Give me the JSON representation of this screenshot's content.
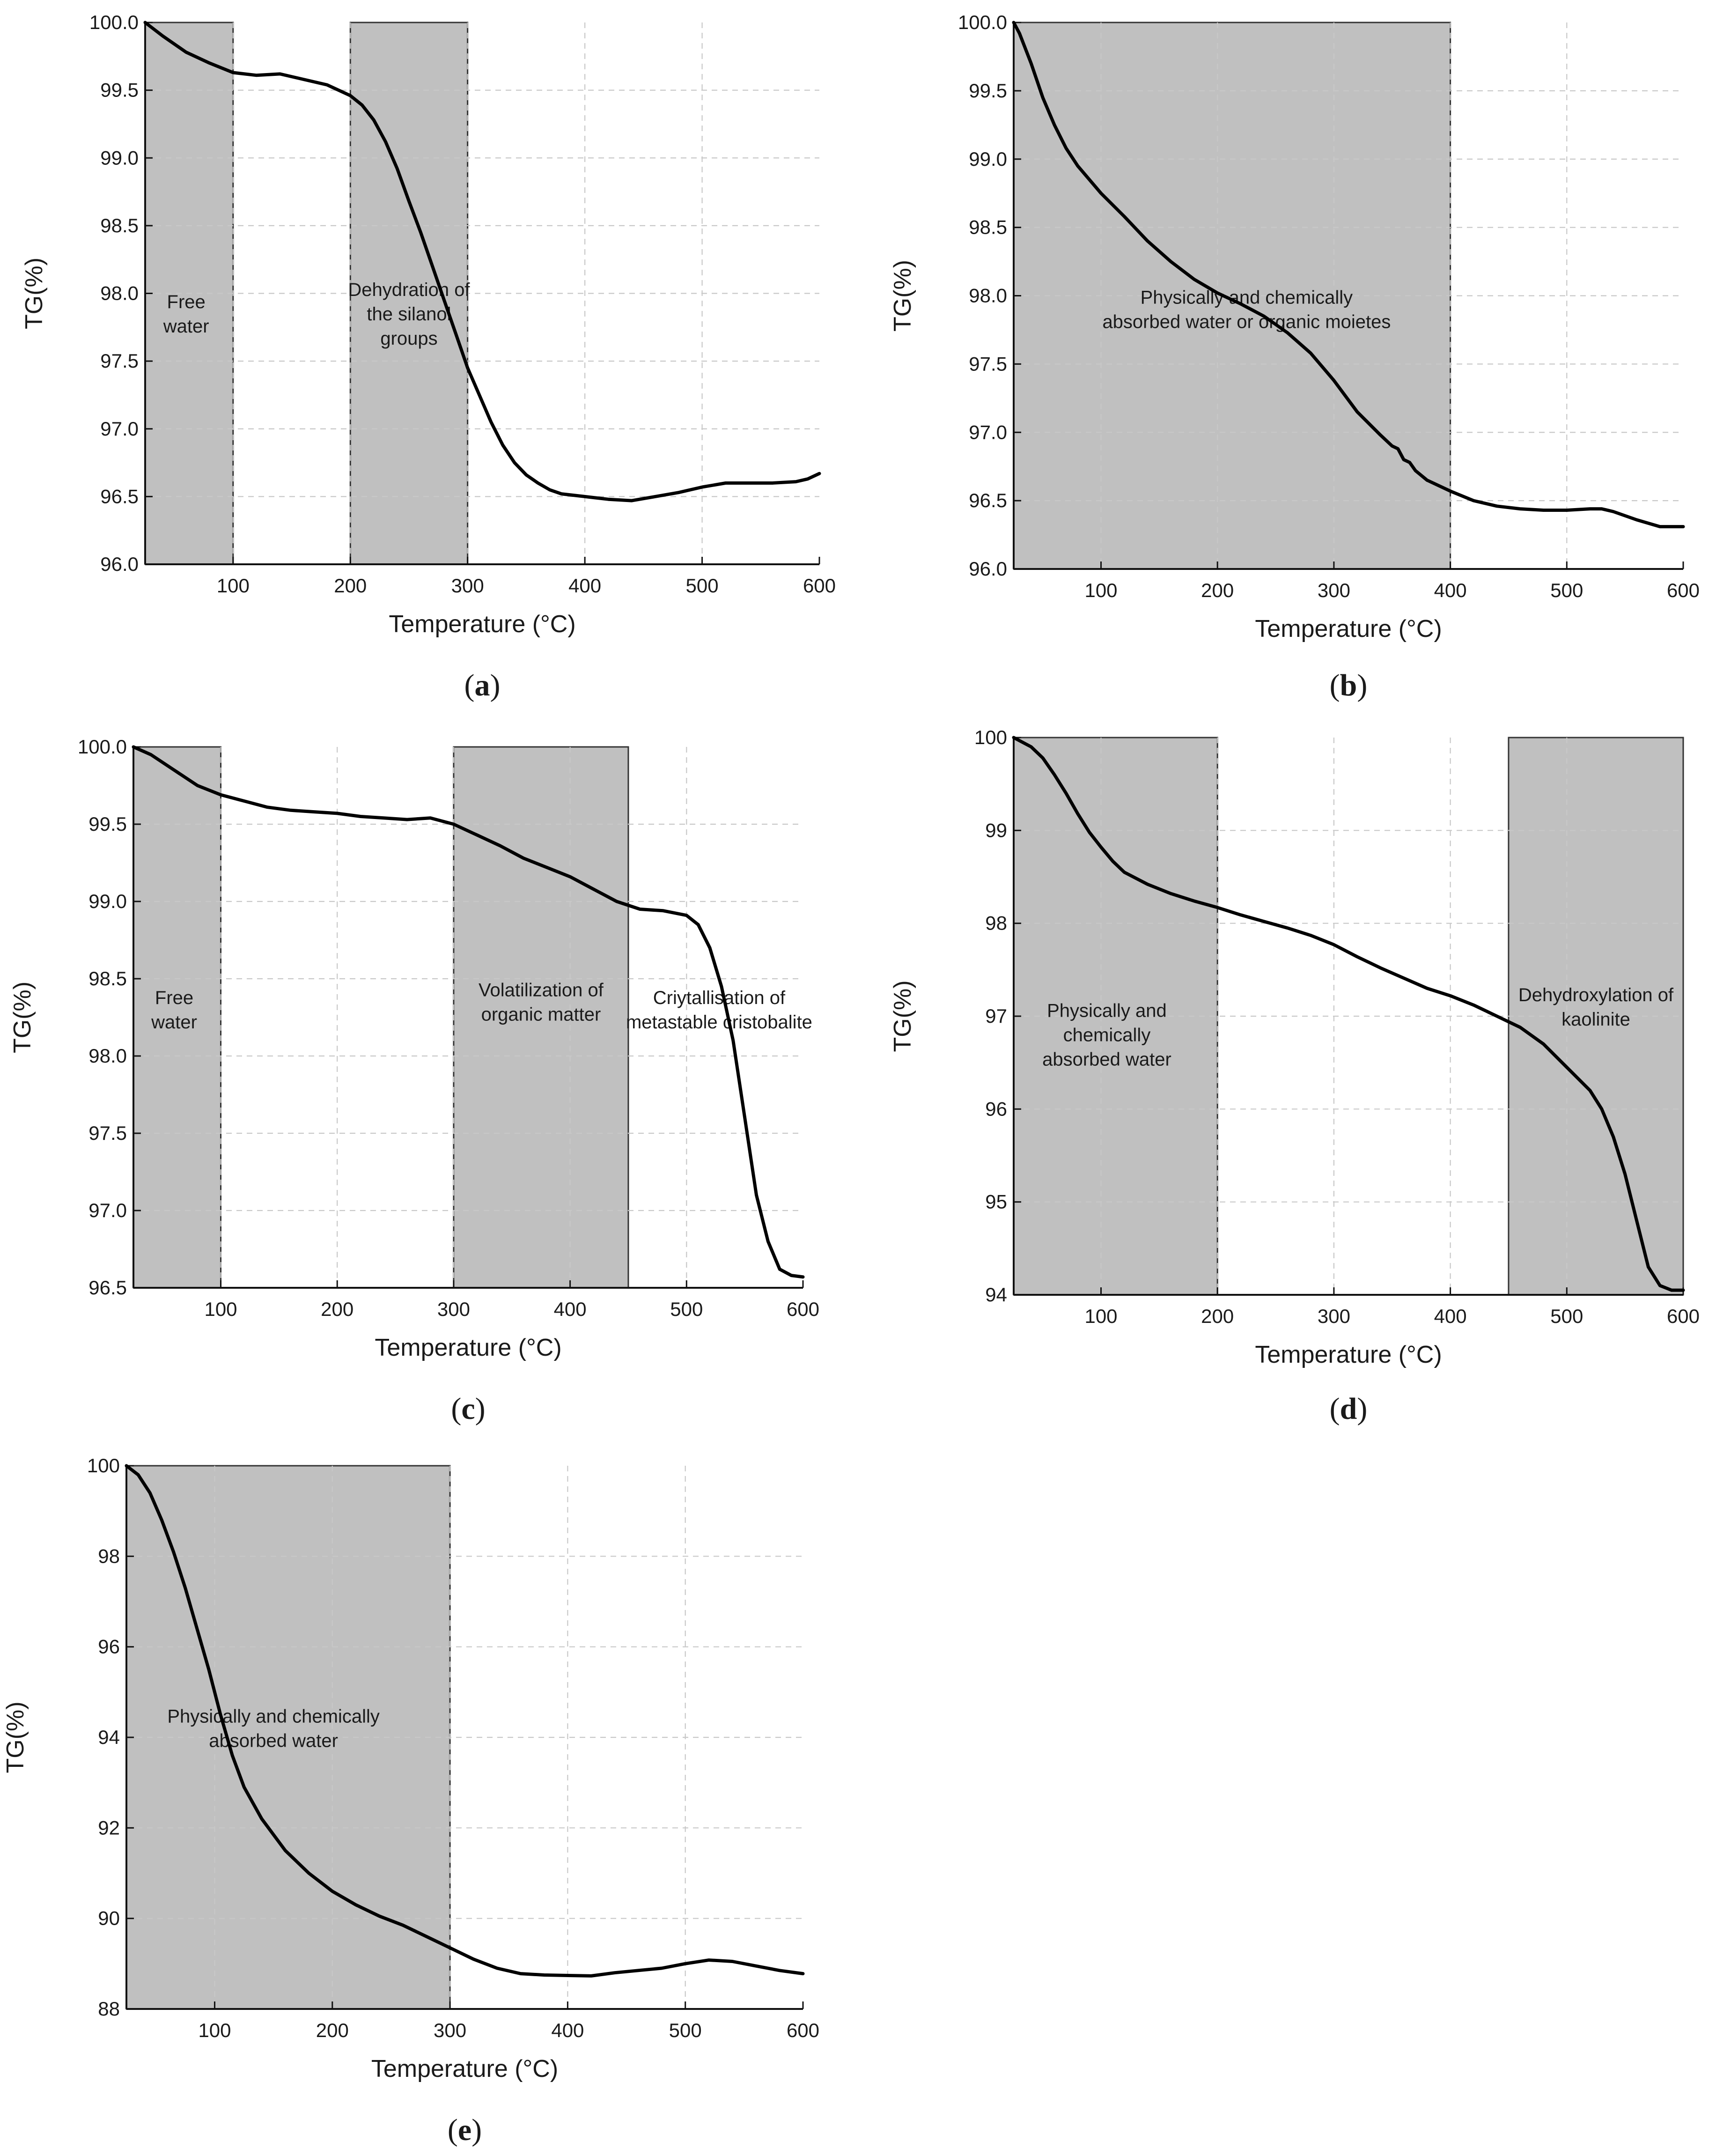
{
  "figure": {
    "layout": "five TGA panels in a 2x3 grid"
  },
  "chart_data": [
    {
      "id": "a",
      "panel_label": "a",
      "type": "line",
      "xlabel": "Temperature (°C)",
      "ylabel": "TG(%)",
      "xlim": [
        25,
        600
      ],
      "ylim": [
        96.0,
        100.0
      ],
      "x_ticks": [
        "100",
        "200",
        "300",
        "400",
        "500",
        "600"
      ],
      "x_tick_values": [
        100,
        200,
        300,
        400,
        500,
        600
      ],
      "y_ticks": [
        "96.0",
        "96.5",
        "97.0",
        "97.5",
        "98.0",
        "98.5",
        "99.0",
        "99.5",
        "100.0"
      ],
      "y_tick_values": [
        96.0,
        96.5,
        97.0,
        97.5,
        98.0,
        98.5,
        99.0,
        99.5,
        100.0
      ],
      "grid": true,
      "regions": [
        {
          "x_start": 25,
          "x_end": 100,
          "label": [
            "Free",
            "water"
          ],
          "label_pos": [
            60,
            97.85
          ]
        },
        {
          "x_start": 200,
          "x_end": 300,
          "label": [
            "Dehydration of",
            "the silanol",
            "groups"
          ],
          "label_pos": [
            250,
            97.85
          ]
        }
      ],
      "series": [
        {
          "name": "TG",
          "x": [
            25,
            40,
            60,
            80,
            100,
            120,
            140,
            160,
            180,
            200,
            210,
            220,
            230,
            240,
            250,
            260,
            270,
            280,
            290,
            300,
            310,
            320,
            330,
            340,
            350,
            360,
            370,
            380,
            390,
            400,
            420,
            440,
            460,
            480,
            500,
            520,
            540,
            560,
            580,
            590,
            600
          ],
          "y": [
            100.0,
            99.9,
            99.78,
            99.7,
            99.63,
            99.61,
            99.62,
            99.58,
            99.54,
            99.46,
            99.39,
            99.28,
            99.12,
            98.92,
            98.68,
            98.45,
            98.2,
            97.95,
            97.7,
            97.45,
            97.25,
            97.05,
            96.88,
            96.75,
            96.66,
            96.6,
            96.55,
            96.52,
            96.51,
            96.5,
            96.48,
            96.47,
            96.5,
            96.53,
            96.57,
            96.6,
            96.6,
            96.6,
            96.61,
            96.63,
            96.67
          ]
        }
      ]
    },
    {
      "id": "b",
      "panel_label": "b",
      "type": "line",
      "xlabel": "Temperature (°C)",
      "ylabel": "TG(%)",
      "xlim": [
        25,
        600
      ],
      "ylim": [
        96.0,
        100.0
      ],
      "x_ticks": [
        "100",
        "200",
        "300",
        "400",
        "500",
        "600"
      ],
      "x_tick_values": [
        100,
        200,
        300,
        400,
        500,
        600
      ],
      "y_ticks": [
        "96.0",
        "96.5",
        "97.0",
        "97.5",
        "98.0",
        "98.5",
        "99.0",
        "99.5",
        "100.0"
      ],
      "y_tick_values": [
        96.0,
        96.5,
        97.0,
        97.5,
        98.0,
        98.5,
        99.0,
        99.5,
        100.0
      ],
      "grid": true,
      "regions": [
        {
          "x_start": 25,
          "x_end": 400,
          "label": [
            "Physically and chemically",
            "absorbed water or organic moietes"
          ],
          "label_pos": [
            225,
            97.9
          ]
        }
      ],
      "series": [
        {
          "name": "TG",
          "x": [
            25,
            30,
            40,
            50,
            60,
            70,
            80,
            100,
            120,
            140,
            160,
            180,
            200,
            220,
            240,
            260,
            280,
            300,
            320,
            340,
            350,
            355,
            360,
            365,
            370,
            380,
            400,
            420,
            440,
            460,
            480,
            500,
            520,
            530,
            540,
            560,
            580,
            600
          ],
          "y": [
            100.0,
            99.92,
            99.7,
            99.45,
            99.25,
            99.08,
            98.95,
            98.75,
            98.58,
            98.4,
            98.25,
            98.12,
            98.02,
            97.94,
            97.85,
            97.73,
            97.58,
            97.38,
            97.15,
            96.98,
            96.9,
            96.88,
            96.8,
            96.78,
            96.72,
            96.65,
            96.57,
            96.5,
            96.46,
            96.44,
            96.43,
            96.43,
            96.44,
            96.44,
            96.42,
            96.36,
            96.31,
            96.31
          ]
        }
      ]
    },
    {
      "id": "c",
      "panel_label": "c",
      "type": "line",
      "xlabel": "Temperature (°C)",
      "ylabel": "TG(%)",
      "xlim": [
        25,
        600
      ],
      "ylim": [
        96.5,
        100.0
      ],
      "x_ticks": [
        "100",
        "200",
        "300",
        "400",
        "500",
        "600"
      ],
      "x_tick_values": [
        100,
        200,
        300,
        400,
        500,
        600
      ],
      "y_ticks": [
        "96.5",
        "97.0",
        "97.5",
        "98.0",
        "98.5",
        "99.0",
        "99.5",
        "100.0"
      ],
      "y_tick_values": [
        96.5,
        97.0,
        97.5,
        98.0,
        98.5,
        99.0,
        99.5,
        100.0
      ],
      "grid": true,
      "regions": [
        {
          "x_start": 25,
          "x_end": 100,
          "label": [
            "Free",
            "water"
          ],
          "label_pos": [
            60,
            98.3
          ]
        },
        {
          "x_start": 300,
          "x_end": 450,
          "label": [
            "Volatilization of",
            "organic matter"
          ],
          "label_pos": [
            375,
            98.35
          ]
        }
      ],
      "annotations": [
        {
          "label": [
            "Criytallisation of",
            "metastable cristobalite"
          ],
          "pos": [
            528,
            98.3
          ]
        }
      ],
      "series": [
        {
          "name": "TG",
          "x": [
            25,
            40,
            60,
            80,
            100,
            120,
            140,
            160,
            180,
            200,
            220,
            240,
            260,
            280,
            300,
            320,
            340,
            360,
            380,
            400,
            420,
            440,
            460,
            480,
            500,
            510,
            520,
            530,
            540,
            550,
            560,
            570,
            580,
            590,
            600
          ],
          "y": [
            100.0,
            99.95,
            99.85,
            99.75,
            99.69,
            99.65,
            99.61,
            99.59,
            99.58,
            99.57,
            99.55,
            99.54,
            99.53,
            99.54,
            99.5,
            99.43,
            99.36,
            99.28,
            99.22,
            99.16,
            99.08,
            99.0,
            98.95,
            98.94,
            98.91,
            98.85,
            98.7,
            98.45,
            98.1,
            97.6,
            97.1,
            96.8,
            96.62,
            96.58,
            96.57
          ]
        }
      ]
    },
    {
      "id": "d",
      "panel_label": "d",
      "type": "line",
      "xlabel": "Temperature (°C)",
      "ylabel": "TG(%)",
      "xlim": [
        25,
        600
      ],
      "ylim": [
        94,
        100
      ],
      "x_ticks": [
        "100",
        "200",
        "300",
        "400",
        "500",
        "600"
      ],
      "x_tick_values": [
        100,
        200,
        300,
        400,
        500,
        600
      ],
      "y_ticks": [
        "94",
        "95",
        "96",
        "97",
        "98",
        "99",
        "100"
      ],
      "y_tick_values": [
        94,
        95,
        96,
        97,
        98,
        99,
        100
      ],
      "grid": true,
      "regions": [
        {
          "x_start": 25,
          "x_end": 200,
          "label": [
            "Physically and",
            "chemically",
            "absorbed water"
          ],
          "label_pos": [
            105,
            96.8
          ]
        },
        {
          "x_start": 450,
          "x_end": 600,
          "label": [
            "Dehydroxylation of",
            "kaolinite"
          ],
          "label_pos": [
            525,
            97.1
          ]
        }
      ],
      "series": [
        {
          "name": "TG",
          "x": [
            25,
            40,
            50,
            60,
            70,
            80,
            90,
            100,
            110,
            120,
            140,
            160,
            180,
            200,
            220,
            240,
            260,
            280,
            300,
            320,
            340,
            360,
            380,
            400,
            420,
            440,
            460,
            480,
            500,
            520,
            530,
            540,
            550,
            560,
            570,
            580,
            590,
            600
          ],
          "y": [
            100.0,
            99.9,
            99.78,
            99.6,
            99.4,
            99.18,
            98.98,
            98.82,
            98.67,
            98.55,
            98.42,
            98.32,
            98.24,
            98.17,
            98.09,
            98.02,
            97.95,
            97.87,
            97.77,
            97.64,
            97.52,
            97.41,
            97.3,
            97.22,
            97.12,
            97.0,
            96.88,
            96.7,
            96.45,
            96.2,
            96.0,
            95.7,
            95.3,
            94.8,
            94.3,
            94.1,
            94.05,
            94.05
          ]
        }
      ]
    },
    {
      "id": "e",
      "panel_label": "e",
      "type": "line",
      "xlabel": "Temperature (°C)",
      "ylabel": "TG(%)",
      "xlim": [
        25,
        600
      ],
      "ylim": [
        88,
        100
      ],
      "x_ticks": [
        "100",
        "200",
        "300",
        "400",
        "500",
        "600"
      ],
      "x_tick_values": [
        100,
        200,
        300,
        400,
        500,
        600
      ],
      "y_ticks": [
        "88",
        "90",
        "92",
        "94",
        "96",
        "98",
        "100"
      ],
      "y_tick_values": [
        88,
        90,
        92,
        94,
        96,
        98,
        100
      ],
      "grid": true,
      "regions": [
        {
          "x_start": 25,
          "x_end": 300,
          "label": [
            "Physically and chemically",
            "absorbed water"
          ],
          "label_pos": [
            150,
            94.2
          ]
        }
      ],
      "series": [
        {
          "name": "TG",
          "x": [
            25,
            35,
            45,
            55,
            65,
            75,
            85,
            95,
            105,
            115,
            125,
            140,
            160,
            180,
            200,
            220,
            240,
            260,
            280,
            300,
            320,
            340,
            360,
            380,
            400,
            420,
            440,
            460,
            480,
            500,
            520,
            540,
            560,
            580,
            600
          ],
          "y": [
            100.0,
            99.8,
            99.4,
            98.8,
            98.1,
            97.3,
            96.4,
            95.5,
            94.5,
            93.6,
            92.9,
            92.2,
            91.5,
            91.0,
            90.6,
            90.3,
            90.05,
            89.85,
            89.6,
            89.35,
            89.1,
            88.9,
            88.78,
            88.75,
            88.74,
            88.73,
            88.8,
            88.85,
            88.9,
            89.0,
            89.08,
            89.05,
            88.95,
            88.85,
            88.78
          ]
        }
      ]
    }
  ]
}
